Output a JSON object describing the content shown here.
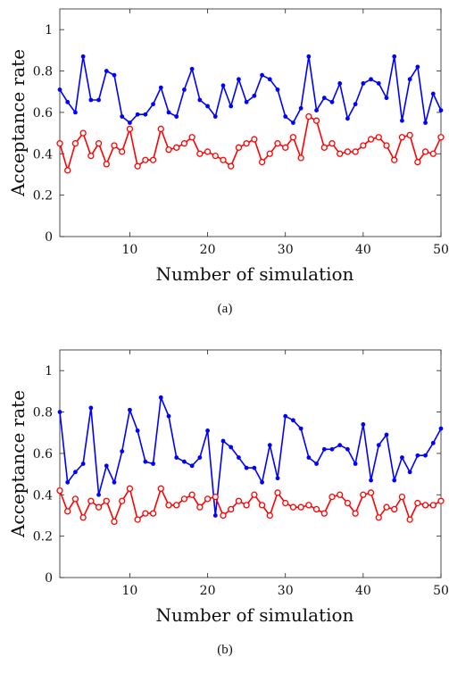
{
  "chart_data": [
    {
      "type": "line",
      "caption": "(a)",
      "xlabel": "Number of simulation",
      "ylabel": "Acceptance rate",
      "xlim": [
        1,
        50
      ],
      "ylim": [
        0,
        1.1
      ],
      "xticks": [
        10,
        20,
        30,
        40,
        50
      ],
      "yticks": [
        0,
        0.2,
        0.4,
        0.6,
        0.8,
        1
      ],
      "ytick_labels": [
        "0",
        "0.2",
        "0.4",
        "0.6",
        "0.8",
        "1"
      ],
      "grid": false,
      "x": [
        1,
        2,
        3,
        4,
        5,
        6,
        7,
        8,
        9,
        10,
        11,
        12,
        13,
        14,
        15,
        16,
        17,
        18,
        19,
        20,
        21,
        22,
        23,
        24,
        25,
        26,
        27,
        28,
        29,
        30,
        31,
        32,
        33,
        34,
        35,
        36,
        37,
        38,
        39,
        40,
        41,
        42,
        43,
        44,
        45,
        46,
        47,
        48,
        49,
        50
      ],
      "series": [
        {
          "color": "#0000ff",
          "marker": "dot",
          "values": [
            0.71,
            0.65,
            0.6,
            0.87,
            0.66,
            0.66,
            0.8,
            0.78,
            0.58,
            0.55,
            0.59,
            0.59,
            0.64,
            0.72,
            0.6,
            0.58,
            0.71,
            0.81,
            0.66,
            0.63,
            0.58,
            0.73,
            0.63,
            0.76,
            0.65,
            0.68,
            0.78,
            0.76,
            0.71,
            0.58,
            0.55,
            0.62,
            0.87,
            0.61,
            0.67,
            0.65,
            0.74,
            0.57,
            0.64,
            0.74,
            0.76,
            0.74,
            0.67,
            0.87,
            0.56,
            0.76,
            0.82,
            0.55,
            0.69,
            0.61
          ]
        },
        {
          "color": "#ff0000",
          "marker": "circle",
          "values": [
            0.45,
            0.32,
            0.45,
            0.5,
            0.39,
            0.45,
            0.35,
            0.44,
            0.41,
            0.52,
            0.34,
            0.37,
            0.37,
            0.52,
            0.42,
            0.43,
            0.45,
            0.48,
            0.4,
            0.41,
            0.39,
            0.37,
            0.34,
            0.43,
            0.45,
            0.47,
            0.36,
            0.4,
            0.45,
            0.43,
            0.48,
            0.38,
            0.58,
            0.56,
            0.43,
            0.45,
            0.4,
            0.41,
            0.41,
            0.44,
            0.47,
            0.48,
            0.44,
            0.37,
            0.48,
            0.49,
            0.36,
            0.41,
            0.4,
            0.48
          ]
        }
      ]
    },
    {
      "type": "line",
      "caption": "(b)",
      "xlabel": "Number of simulation",
      "ylabel": "Acceptance rate",
      "xlim": [
        1,
        50
      ],
      "ylim": [
        0,
        1.1
      ],
      "xticks": [
        10,
        20,
        30,
        40,
        50
      ],
      "yticks": [
        0,
        0.2,
        0.4,
        0.6,
        0.8,
        1
      ],
      "ytick_labels": [
        "0",
        "0.2",
        "0.4",
        "0.6",
        "0.8",
        "1"
      ],
      "grid": false,
      "x": [
        1,
        2,
        3,
        4,
        5,
        6,
        7,
        8,
        9,
        10,
        11,
        12,
        13,
        14,
        15,
        16,
        17,
        18,
        19,
        20,
        21,
        22,
        23,
        24,
        25,
        26,
        27,
        28,
        29,
        30,
        31,
        32,
        33,
        34,
        35,
        36,
        37,
        38,
        39,
        40,
        41,
        42,
        43,
        44,
        45,
        46,
        47,
        48,
        49,
        50
      ],
      "series": [
        {
          "color": "#0000ff",
          "marker": "dot",
          "values": [
            0.8,
            0.46,
            0.51,
            0.55,
            0.82,
            0.4,
            0.54,
            0.46,
            0.61,
            0.81,
            0.71,
            0.56,
            0.55,
            0.87,
            0.78,
            0.58,
            0.56,
            0.54,
            0.58,
            0.71,
            0.3,
            0.66,
            0.63,
            0.58,
            0.53,
            0.53,
            0.46,
            0.64,
            0.48,
            0.78,
            0.76,
            0.72,
            0.58,
            0.55,
            0.62,
            0.62,
            0.64,
            0.62,
            0.55,
            0.74,
            0.47,
            0.64,
            0.69,
            0.47,
            0.58,
            0.51,
            0.59,
            0.59,
            0.65,
            0.72
          ]
        },
        {
          "color": "#ff0000",
          "marker": "circle",
          "values": [
            0.42,
            0.32,
            0.38,
            0.29,
            0.37,
            0.34,
            0.37,
            0.27,
            0.37,
            0.43,
            0.28,
            0.31,
            0.31,
            0.43,
            0.35,
            0.35,
            0.38,
            0.4,
            0.34,
            0.38,
            0.39,
            0.3,
            0.33,
            0.37,
            0.35,
            0.4,
            0.35,
            0.3,
            0.41,
            0.36,
            0.34,
            0.34,
            0.35,
            0.33,
            0.31,
            0.39,
            0.4,
            0.36,
            0.31,
            0.4,
            0.41,
            0.29,
            0.34,
            0.33,
            0.39,
            0.28,
            0.36,
            0.35,
            0.35,
            0.37
          ]
        }
      ]
    }
  ]
}
